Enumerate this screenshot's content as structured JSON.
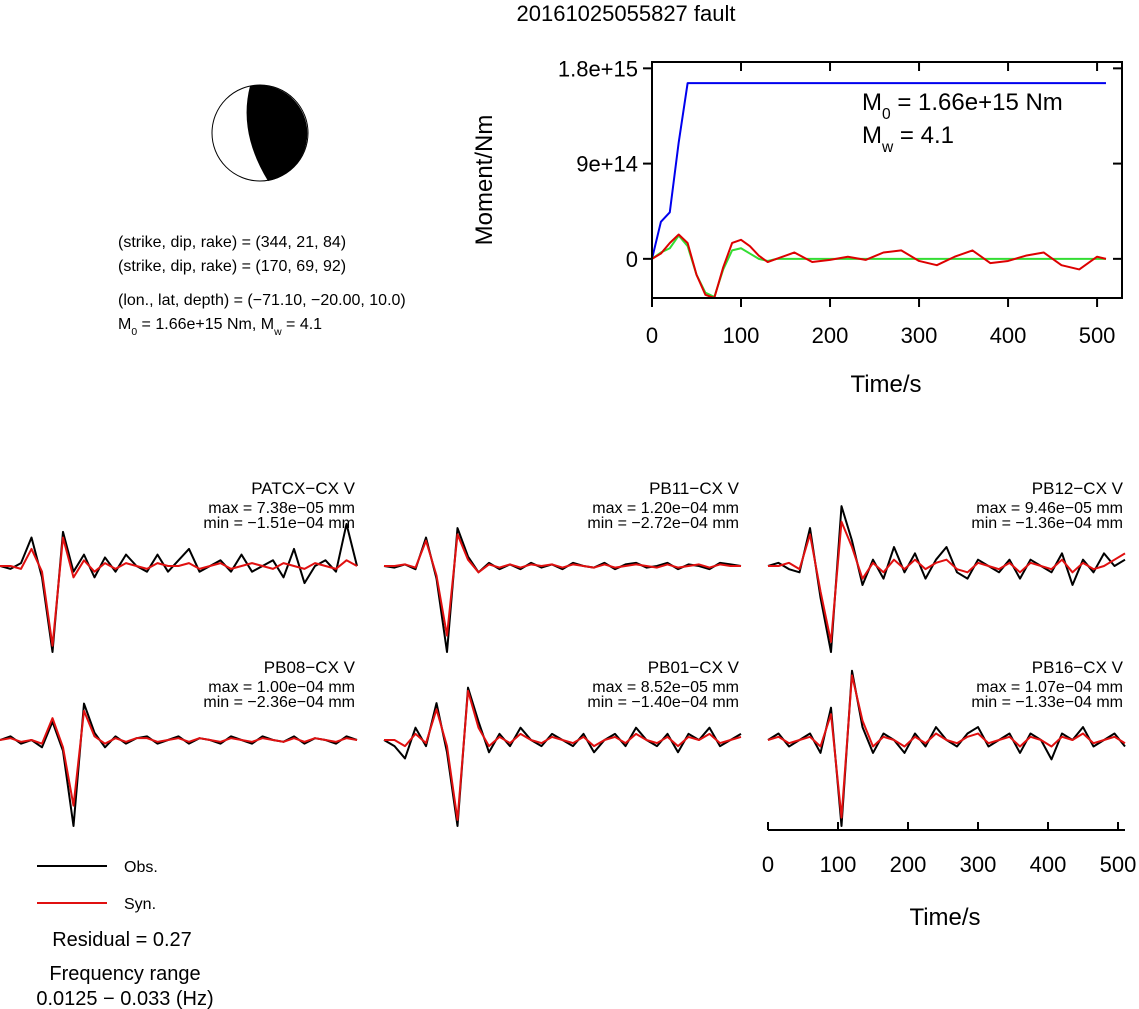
{
  "title": "20161025055827 fault",
  "mechanism_lines": [
    "(strike, dip, rake) = (344, 21, 84)",
    "(strike, dip, rake) = (170, 69, 92)",
    "(lon., lat, depth) = (−71.10, −20.00, 10.0)"
  ],
  "moment_line": [
    "M",
    "0",
    " = 1.66e+15 Nm, M",
    "w",
    " = 4.1"
  ],
  "residual": "Residual = 0.27",
  "frequency_title": "Frequency range",
  "frequency_range": "0.0125 − 0.033 (Hz)",
  "chart_data": [
    {
      "type": "line",
      "xlabel": "Time/s",
      "ylabel": "Moment/Nm",
      "annotations": [
        [
          "M",
          "0",
          " = 1.66e+15 Nm"
        ],
        [
          "M",
          "w",
          " = 4.1"
        ]
      ],
      "xlim": [
        0,
        528
      ],
      "xticks": [
        0,
        100,
        200,
        300,
        400,
        500
      ],
      "ylim": [
        -370000000000000.0,
        1860000000000000.0
      ],
      "yticks": [
        0,
        {
          "value": 900000000000000.0,
          "label": "9e+14"
        },
        {
          "value": 1800000000000000.0,
          "label": "1.8e+15"
        }
      ],
      "x": [
        0,
        10,
        20,
        30,
        40,
        50,
        60,
        70,
        80,
        90,
        100,
        110,
        120,
        130,
        140,
        160,
        180,
        200,
        220,
        240,
        260,
        280,
        300,
        320,
        340,
        360,
        380,
        400,
        420,
        440,
        460,
        480,
        500,
        510
      ],
      "series": [
        {
          "color": "#0000ee",
          "values": [
            0,
            350000000000000.0,
            440000000000000.0,
            1100000000000000.0,
            1660000000000000.0,
            1660000000000000.0,
            1660000000000000.0,
            1660000000000000.0,
            1660000000000000.0,
            1660000000000000.0,
            1660000000000000.0,
            1660000000000000.0,
            1660000000000000.0,
            1660000000000000.0,
            1660000000000000.0,
            1660000000000000.0,
            1660000000000000.0,
            1660000000000000.0,
            1660000000000000.0,
            1660000000000000.0,
            1660000000000000.0,
            1660000000000000.0,
            1660000000000000.0,
            1660000000000000.0,
            1660000000000000.0,
            1660000000000000.0,
            1660000000000000.0,
            1660000000000000.0,
            1660000000000000.0,
            1660000000000000.0,
            1660000000000000.0,
            1660000000000000.0,
            1660000000000000.0,
            1660000000000000.0
          ]
        },
        {
          "color": "#33dd33",
          "values": [
            0,
            60000000000000.0,
            100000000000000.0,
            220000000000000.0,
            120000000000000.0,
            -150000000000000.0,
            -320000000000000.0,
            -360000000000000.0,
            -100000000000000.0,
            80000000000000.0,
            100000000000000.0,
            50000000000000.0,
            0,
            -20000000000000.0,
            0,
            0,
            0,
            0,
            0,
            0,
            0,
            0,
            0,
            0,
            0,
            0,
            0,
            0,
            0,
            0,
            0,
            0,
            0,
            0
          ]
        },
        {
          "color": "#dd0000",
          "values": [
            0,
            50000000000000.0,
            150000000000000.0,
            230000000000000.0,
            150000000000000.0,
            -150000000000000.0,
            -340000000000000.0,
            -370000000000000.0,
            -80000000000000.0,
            150000000000000.0,
            180000000000000.0,
            120000000000000.0,
            30000000000000.0,
            -30000000000000.0,
            0,
            60000000000000.0,
            -30000000000000.0,
            -10000000000000.0,
            20000000000000.0,
            -10000000000000.0,
            60000000000000.0,
            80000000000000.0,
            -20000000000000.0,
            -60000000000000.0,
            20000000000000.0,
            80000000000000.0,
            -40000000000000.0,
            -20000000000000.0,
            30000000000000.0,
            60000000000000.0,
            -60000000000000.0,
            -100000000000000.0,
            20000000000000.0,
            0
          ]
        }
      ]
    },
    {
      "type": "line",
      "title": "PATCX−CX V",
      "annotations": [
        "max = 7.38e−05 mm",
        "min = −1.51e−04 mm"
      ],
      "xlim": [
        0,
        510
      ],
      "x": [
        0,
        15,
        30,
        45,
        60,
        75,
        90,
        105,
        120,
        135,
        150,
        165,
        180,
        195,
        210,
        225,
        240,
        255,
        270,
        285,
        300,
        315,
        330,
        345,
        360,
        375,
        390,
        405,
        420,
        435,
        450,
        465,
        480,
        495,
        510
      ],
      "series": [
        {
          "name": "Obs.",
          "color": "#000000",
          "values": [
            0,
            -5e-06,
            5e-06,
            5e-05,
            -2e-05,
            -0.000151,
            6e-05,
            -1e-05,
            2e-05,
            -2e-05,
            1.5e-05,
            -1e-05,
            2e-05,
            0,
            -1e-05,
            2e-05,
            -1e-05,
            1e-05,
            3e-05,
            -1e-05,
            0,
            1e-05,
            -1e-05,
            2e-05,
            -1e-05,
            0,
            1e-05,
            -2e-05,
            3e-05,
            -3e-05,
            0,
            1e-05,
            -1e-05,
            7.38e-05,
            0
          ]
        },
        {
          "name": "Syn.",
          "color": "#e01010",
          "values": [
            0,
            0,
            -5e-06,
            3e-05,
            -1e-05,
            -0.00014,
            5e-05,
            -2e-05,
            1e-05,
            -1e-05,
            5e-06,
            -5e-06,
            5e-06,
            0,
            -5e-06,
            5e-06,
            0,
            0,
            5e-06,
            -5e-06,
            0,
            5e-06,
            -5e-06,
            0,
            5e-06,
            0,
            -5e-06,
            5e-06,
            0,
            -5e-06,
            5e-06,
            0,
            -5e-06,
            1e-05,
            0
          ]
        }
      ]
    },
    {
      "type": "line",
      "title": "PB11−CX V",
      "annotations": [
        "max = 1.20e−04 mm",
        "min = −2.72e−04 mm"
      ],
      "xlim": [
        0,
        510
      ],
      "x": [
        0,
        15,
        30,
        45,
        60,
        75,
        90,
        105,
        120,
        135,
        150,
        165,
        180,
        195,
        210,
        225,
        240,
        255,
        270,
        285,
        300,
        315,
        330,
        345,
        360,
        375,
        390,
        405,
        420,
        435,
        450,
        465,
        480,
        495,
        510
      ],
      "series": [
        {
          "name": "Obs.",
          "color": "#000000",
          "values": [
            0,
            -5e-06,
            5e-06,
            -1e-05,
            9e-05,
            -4e-05,
            -0.000272,
            0.00012,
            3e-05,
            -2e-05,
            1e-05,
            -1e-05,
            5e-06,
            -1e-05,
            1e-05,
            -5e-06,
            5e-06,
            -1e-05,
            1e-05,
            0,
            -5e-06,
            1e-05,
            -1e-05,
            5e-06,
            1e-05,
            -5e-06,
            0,
            1e-05,
            -1e-05,
            5e-06,
            0,
            -1e-05,
            1e-05,
            5e-06,
            0
          ]
        },
        {
          "name": "Syn.",
          "color": "#e01010",
          "values": [
            0,
            0,
            5e-06,
            -5e-06,
            8e-05,
            -3e-05,
            -0.00022,
            0.0001,
            2e-05,
            -2e-05,
            5e-06,
            -5e-06,
            5e-06,
            -5e-06,
            5e-06,
            0,
            5e-06,
            -5e-06,
            5e-06,
            0,
            -5e-06,
            5e-06,
            -5e-06,
            0,
            5e-06,
            0,
            -5e-06,
            5e-06,
            -5e-06,
            0,
            5e-06,
            -5e-06,
            5e-06,
            0,
            0
          ]
        }
      ]
    },
    {
      "type": "line",
      "title": "PB12−CX V",
      "annotations": [
        "max = 9.46e−05 mm",
        "min = −1.36e−04 mm"
      ],
      "xlim": [
        0,
        510
      ],
      "x": [
        0,
        15,
        30,
        45,
        60,
        75,
        90,
        105,
        120,
        135,
        150,
        165,
        180,
        195,
        210,
        225,
        240,
        255,
        270,
        285,
        300,
        315,
        330,
        345,
        360,
        375,
        390,
        405,
        420,
        435,
        450,
        465,
        480,
        495,
        510
      ],
      "series": [
        {
          "name": "Obs.",
          "color": "#000000",
          "values": [
            0,
            5e-06,
            -5e-06,
            -1e-05,
            6e-05,
            -5e-05,
            -0.000136,
            9.46e-05,
            4e-05,
            -3e-05,
            1e-05,
            -2e-05,
            3e-05,
            -1e-05,
            2e-05,
            -2e-05,
            1e-05,
            3e-05,
            -1e-05,
            -2e-05,
            1e-05,
            0,
            -1e-05,
            1e-05,
            -2e-05,
            1e-05,
            0,
            -1e-05,
            2e-05,
            -3e-05,
            1e-05,
            -1e-05,
            2e-05,
            0,
            1e-05
          ]
        },
        {
          "name": "Syn.",
          "color": "#e01010",
          "values": [
            0,
            0,
            5e-06,
            -5e-06,
            5e-05,
            -4e-05,
            -0.00012,
            7e-05,
            3e-05,
            -2e-05,
            5e-06,
            -1e-05,
            1e-05,
            -5e-06,
            1e-05,
            -5e-06,
            5e-06,
            1e-05,
            -5e-06,
            -1e-05,
            5e-06,
            0,
            -5e-06,
            5e-06,
            -1e-05,
            5e-06,
            0,
            -5e-06,
            1e-05,
            -1e-05,
            5e-06,
            -5e-06,
            0,
            1e-05,
            2e-05
          ]
        }
      ]
    },
    {
      "type": "line",
      "title": "PB08−CX V",
      "annotations": [
        "max = 1.00e−04 mm",
        "min = −2.36e−04 mm"
      ],
      "xlim": [
        0,
        510
      ],
      "x": [
        0,
        15,
        30,
        45,
        60,
        75,
        90,
        105,
        120,
        135,
        150,
        165,
        180,
        195,
        210,
        225,
        240,
        255,
        270,
        285,
        300,
        315,
        330,
        345,
        360,
        375,
        390,
        405,
        420,
        435,
        450,
        465,
        480,
        495,
        510
      ],
      "series": [
        {
          "name": "Obs.",
          "color": "#000000",
          "values": [
            0,
            1e-05,
            -1e-05,
            0,
            -2e-05,
            5e-05,
            -3e-05,
            -0.000236,
            0.0001,
            2e-05,
            -2e-05,
            1e-05,
            -1e-05,
            5e-06,
            1e-05,
            -1e-05,
            0,
            1e-05,
            -1e-05,
            5e-06,
            0,
            -1e-05,
            1e-05,
            0,
            -1e-05,
            1e-05,
            0,
            -5e-06,
            1e-05,
            -1e-05,
            5e-06,
            0,
            -1e-05,
            1e-05,
            0
          ]
        },
        {
          "name": "Syn.",
          "color": "#e01010",
          "values": [
            0,
            5e-06,
            -5e-06,
            0,
            -1e-05,
            6e-05,
            -2e-05,
            -0.00018,
            8e-05,
            1e-05,
            -1e-05,
            5e-06,
            -5e-06,
            5e-06,
            5e-06,
            -5e-06,
            0,
            5e-06,
            -5e-06,
            5e-06,
            0,
            -5e-06,
            5e-06,
            0,
            -5e-06,
            5e-06,
            0,
            -5e-06,
            5e-06,
            -5e-06,
            5e-06,
            0,
            -5e-06,
            5e-06,
            0
          ]
        }
      ]
    },
    {
      "type": "line",
      "title": "PB01−CX V",
      "annotations": [
        "max = 8.52e−05 mm",
        "min = −1.40e−04 mm"
      ],
      "xlim": [
        0,
        510
      ],
      "x": [
        0,
        15,
        30,
        45,
        60,
        75,
        90,
        105,
        120,
        135,
        150,
        165,
        180,
        195,
        210,
        225,
        240,
        255,
        270,
        285,
        300,
        315,
        330,
        345,
        360,
        375,
        390,
        405,
        420,
        435,
        450,
        465,
        480,
        495,
        510
      ],
      "series": [
        {
          "name": "Obs.",
          "color": "#000000",
          "values": [
            0,
            -1e-05,
            -3e-05,
            2e-05,
            -1e-05,
            6e-05,
            -2e-05,
            -0.00014,
            8.52e-05,
            3e-05,
            -2e-05,
            1e-05,
            -1e-05,
            2e-05,
            0,
            -1e-05,
            1e-05,
            0,
            -1e-05,
            1e-05,
            -2e-05,
            0,
            1e-05,
            -1e-05,
            2e-05,
            0,
            -1e-05,
            1e-05,
            -2e-05,
            1e-05,
            0,
            2e-05,
            -1e-05,
            0,
            1e-05
          ]
        },
        {
          "name": "Syn.",
          "color": "#e01010",
          "values": [
            0,
            0,
            -1e-05,
            1e-05,
            -5e-06,
            5e-05,
            -1e-05,
            -0.00013,
            8e-05,
            2e-05,
            -1e-05,
            5e-06,
            -5e-06,
            1e-05,
            0,
            -5e-06,
            5e-06,
            0,
            -5e-06,
            5e-06,
            -1e-05,
            0,
            5e-06,
            -5e-06,
            1e-05,
            0,
            -5e-06,
            5e-06,
            -1e-05,
            5e-06,
            0,
            1e-05,
            -5e-06,
            0,
            5e-06
          ]
        }
      ]
    },
    {
      "type": "line",
      "title": "PB16−CX V",
      "annotations": [
        "max = 1.07e−04 mm",
        "min = −1.33e−04 mm"
      ],
      "xlim": [
        0,
        510
      ],
      "xticks": [
        0,
        100,
        200,
        300,
        400,
        500
      ],
      "xlabel": "Time/s",
      "x": [
        0,
        15,
        30,
        45,
        60,
        75,
        90,
        105,
        120,
        135,
        150,
        165,
        180,
        195,
        210,
        225,
        240,
        255,
        270,
        285,
        300,
        315,
        330,
        345,
        360,
        375,
        390,
        405,
        420,
        435,
        450,
        465,
        480,
        495,
        510
      ],
      "series": [
        {
          "name": "Obs.",
          "color": "#000000",
          "values": [
            0,
            1e-05,
            -1e-05,
            0,
            1e-05,
            -2e-05,
            5e-05,
            -0.000133,
            0.000107,
            2e-05,
            -2e-05,
            1e-05,
            0,
            -2e-05,
            1e-05,
            -1e-05,
            2e-05,
            0,
            -1e-05,
            1e-05,
            2e-05,
            -1e-05,
            0,
            1e-05,
            -2e-05,
            1e-05,
            0,
            -3e-05,
            1e-05,
            0,
            2e-05,
            -1e-05,
            0,
            1e-05,
            -1e-05
          ]
        },
        {
          "name": "Syn.",
          "color": "#e01010",
          "values": [
            0,
            5e-06,
            -5e-06,
            0,
            5e-06,
            -1e-05,
            4e-05,
            -0.00012,
            0.0001,
            3e-05,
            -1e-05,
            5e-06,
            0,
            -1e-05,
            5e-06,
            -5e-06,
            1e-05,
            0,
            -5e-06,
            5e-06,
            1e-05,
            -5e-06,
            0,
            5e-06,
            -1e-05,
            5e-06,
            0,
            -1e-05,
            5e-06,
            0,
            1e-05,
            -5e-06,
            0,
            5e-06,
            -5e-06
          ]
        }
      ]
    }
  ]
}
